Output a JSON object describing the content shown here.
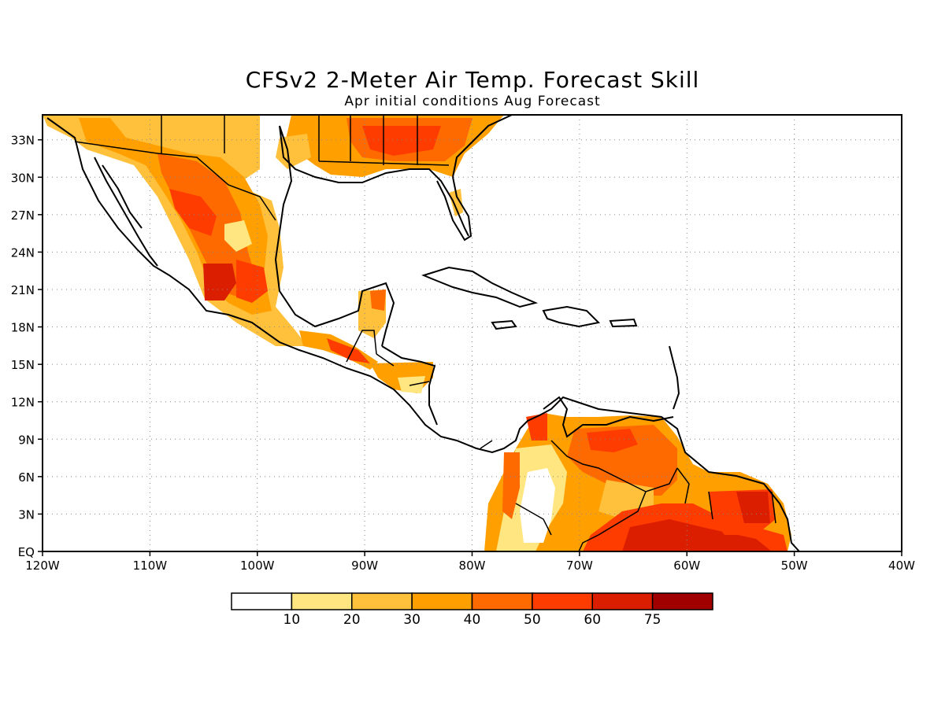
{
  "title": "CFSv2 2-Meter Air Temp. Forecast Skill",
  "subtitle": "Apr initial conditions  Aug Forecast",
  "axes": {
    "lon_ticks": [
      "120W",
      "110W",
      "100W",
      "90W",
      "80W",
      "70W",
      "60W",
      "50W",
      "40W"
    ],
    "lat_ticks": [
      "EQ",
      "3N",
      "6N",
      "9N",
      "12N",
      "15N",
      "18N",
      "21N",
      "24N",
      "27N",
      "30N",
      "33N"
    ],
    "lon_range": [
      -120,
      -40
    ],
    "lat_range": [
      0,
      35
    ],
    "grid": "dotted"
  },
  "colorbar": {
    "labels": [
      "10",
      "20",
      "30",
      "40",
      "50",
      "60",
      "75"
    ],
    "colors": [
      "#ffffff",
      "#ffe680",
      "#ffc03c",
      "#ffa000",
      "#ff6a00",
      "#ff3c00",
      "#dc1e00",
      "#a00000"
    ]
  },
  "colors": {
    "land_outline": "#000000",
    "ocean": "#ffffff"
  }
}
